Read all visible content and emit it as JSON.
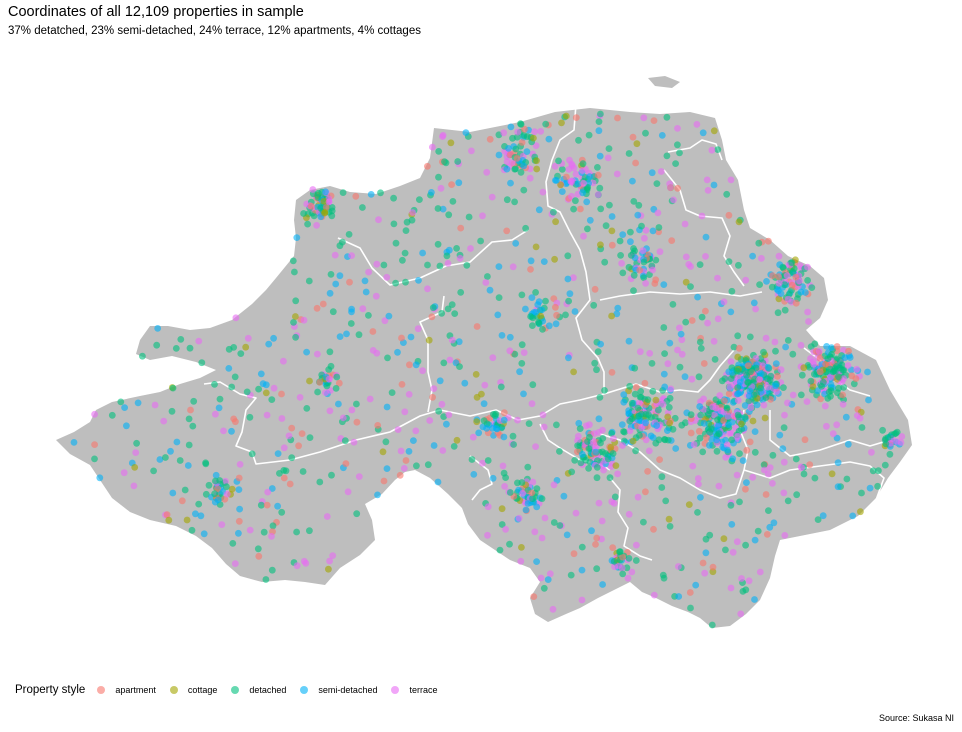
{
  "title": "Coordinates of all 12,109 properties in sample",
  "subtitle": "37% detatched, 23% semi-detached, 24% terrace, 12% apartments, 4% cottages",
  "legend": {
    "title": "Property style",
    "items": [
      {
        "label": "apartment",
        "color": "#F8766D"
      },
      {
        "label": "cottage",
        "color": "#A3A500"
      },
      {
        "label": "detached",
        "color": "#00BF7D"
      },
      {
        "label": "semi-detached",
        "color": "#00B0F6"
      },
      {
        "label": "terrace",
        "color": "#E76BF3"
      }
    ]
  },
  "source": "Source: Sukasa NI",
  "map": {
    "land_color": "#BEBEBE",
    "border_color": "#FFFFFF"
  }
}
